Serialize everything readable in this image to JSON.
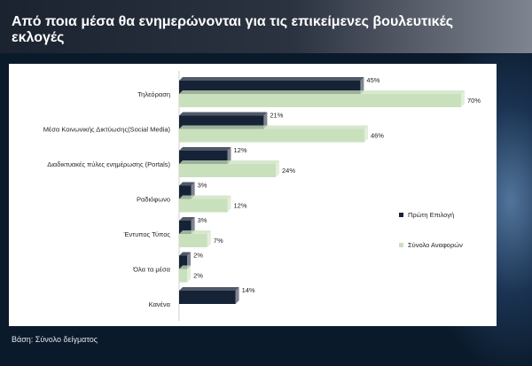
{
  "header": {
    "title": "Από ποια μέσα θα ενημερώνονται για τις επικείμενες βουλευτικές εκλογές"
  },
  "footer": {
    "note": "Βάση: Σύνολο δείγματος"
  },
  "colors": {
    "series1": "#162236",
    "series2": "#c9e0bd",
    "background": "#0b1a2b"
  },
  "chart_data": {
    "type": "bar",
    "orientation": "horizontal",
    "categories": [
      "Τηλεόραση",
      "Μέσα Κοινωνικής Δικτύωσης(Social Media)",
      "Διαδικτυακές πύλες ενημέρωσης (Portals)",
      "Ραδιόφωνο",
      "Έντυπος Τύπος",
      "Όλα τα μέσα",
      "Κανένα"
    ],
    "series": [
      {
        "name": "Πρώτη Επιλογή",
        "values": [
          45,
          21,
          12,
          3,
          3,
          2,
          14
        ],
        "labels": [
          "45%",
          "21%",
          "12%",
          "3%",
          "3%",
          "2%",
          "14%"
        ]
      },
      {
        "name": "Σύνολο Αναφορών",
        "values": [
          70,
          46,
          24,
          12,
          7,
          2,
          null
        ],
        "labels": [
          "70%",
          "46%",
          "24%",
          "12%",
          "7%",
          "2%",
          ""
        ]
      }
    ],
    "xlim": [
      0,
      70
    ],
    "grid": false,
    "legend_position": "right"
  }
}
